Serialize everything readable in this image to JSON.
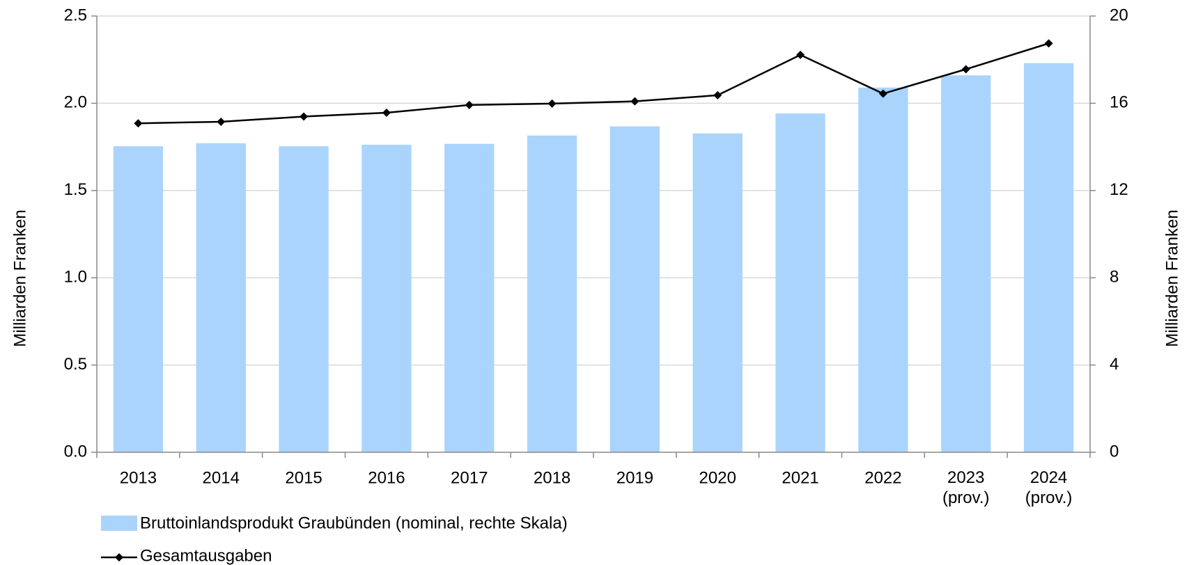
{
  "chart_data": {
    "type": "bar_line",
    "categories": [
      "2013",
      "2014",
      "2015",
      "2016",
      "2017",
      "2018",
      "2019",
      "2020",
      "2021",
      "2022",
      "2023\n(prov.)",
      "2024\n(prov.)"
    ],
    "ylabel": "Milliarden Franken",
    "y2label": "Milliarden Franken",
    "ylim": [
      0,
      2.5
    ],
    "yticks": [
      {
        "value": 0,
        "label": "0.0"
      },
      0.5,
      {
        "value": 1,
        "label": "1.0"
      },
      1.5,
      {
        "value": 2,
        "label": "2.0"
      },
      2.5
    ],
    "y2lim": [
      0,
      20
    ],
    "y2ticks": [
      0,
      4,
      8,
      12,
      16,
      20
    ],
    "grid": true,
    "series": [
      {
        "name": "Bruttoinlandsprodukt Graubünden (nominal, rechte Skala)",
        "type": "bar",
        "axis": "y2",
        "color": "#aad4fc",
        "values": [
          14.03,
          14.17,
          14.03,
          14.1,
          14.14,
          14.52,
          14.94,
          14.62,
          15.53,
          16.72,
          17.28,
          17.84
        ]
      },
      {
        "name": "Gesamtausgaben",
        "type": "line",
        "axis": "y",
        "color": "#000000",
        "values": [
          1.885,
          1.894,
          1.924,
          1.946,
          1.99,
          1.998,
          2.011,
          2.046,
          2.277,
          2.055,
          2.195,
          2.343
        ]
      }
    ]
  }
}
